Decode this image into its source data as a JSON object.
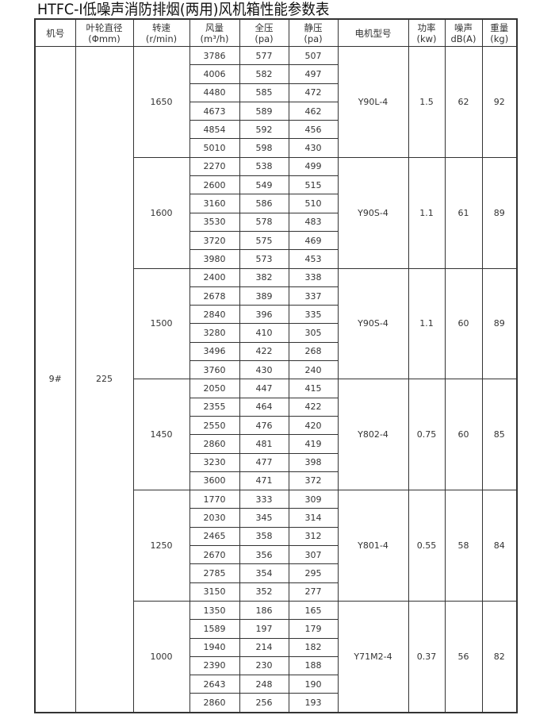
{
  "title": "HTFC-Ⅰ低噪声消防排烟(两用)风机箱性能参数表",
  "headers": [
    {
      "line1": "机号",
      "line2": ""
    },
    {
      "line1": "叶轮直径",
      "line2": "(Φmm)"
    },
    {
      "line1": "转速",
      "line2": "(r/min)"
    },
    {
      "line1": "风量",
      "line2": "(m³/h)"
    },
    {
      "line1": "全压",
      "line2": "(pa)"
    },
    {
      "line1": "静压",
      "line2": "(pa)"
    },
    {
      "line1": "电机型号",
      "line2": ""
    },
    {
      "line1": "功率",
      "line2": "(kw)"
    },
    {
      "line1": "噪声",
      "line2": "dB(A)"
    },
    {
      "line1": "重量",
      "line2": "(kg)"
    }
  ],
  "machine_no": "9#",
  "impeller_diameter": "225",
  "groups": [
    {
      "speed": "1650",
      "motor": "Y90L-4",
      "power": "1.5",
      "noise": "62",
      "weight": "92",
      "rows": [
        [
          "3786",
          "577",
          "507"
        ],
        [
          "4006",
          "582",
          "497"
        ],
        [
          "4480",
          "585",
          "472"
        ],
        [
          "4673",
          "589",
          "462"
        ],
        [
          "4854",
          "592",
          "456"
        ],
        [
          "5010",
          "598",
          "430"
        ]
      ]
    },
    {
      "speed": "1600",
      "motor": "Y90S-4",
      "power": "1.1",
      "noise": "61",
      "weight": "89",
      "rows": [
        [
          "2270",
          "538",
          "499"
        ],
        [
          "2600",
          "549",
          "515"
        ],
        [
          "3160",
          "586",
          "510"
        ],
        [
          "3530",
          "578",
          "483"
        ],
        [
          "3720",
          "575",
          "469"
        ],
        [
          "3980",
          "573",
          "453"
        ]
      ]
    },
    {
      "speed": "1500",
      "motor": "Y90S-4",
      "power": "1.1",
      "noise": "60",
      "weight": "89",
      "rows": [
        [
          "2400",
          "382",
          "338"
        ],
        [
          "2678",
          "389",
          "337"
        ],
        [
          "2840",
          "396",
          "335"
        ],
        [
          "3280",
          "410",
          "305"
        ],
        [
          "3496",
          "422",
          "268"
        ],
        [
          "3760",
          "430",
          "240"
        ]
      ]
    },
    {
      "speed": "1450",
      "motor": "Y802-4",
      "power": "0.75",
      "noise": "60",
      "weight": "85",
      "rows": [
        [
          "2050",
          "447",
          "415"
        ],
        [
          "2355",
          "464",
          "422"
        ],
        [
          "2550",
          "476",
          "420"
        ],
        [
          "2860",
          "481",
          "419"
        ],
        [
          "3230",
          "477",
          "398"
        ],
        [
          "3600",
          "471",
          "372"
        ]
      ]
    },
    {
      "speed": "1250",
      "motor": "Y801-4",
      "power": "0.55",
      "noise": "58",
      "weight": "84",
      "rows": [
        [
          "1770",
          "333",
          "309"
        ],
        [
          "2030",
          "345",
          "314"
        ],
        [
          "2465",
          "358",
          "312"
        ],
        [
          "2670",
          "356",
          "307"
        ],
        [
          "2785",
          "354",
          "295"
        ],
        [
          "3150",
          "352",
          "277"
        ]
      ]
    },
    {
      "speed": "1000",
      "motor": "Y71M2-4",
      "power": "0.37",
      "noise": "56",
      "weight": "82",
      "rows": [
        [
          "1350",
          "186",
          "165"
        ],
        [
          "1589",
          "197",
          "179"
        ],
        [
          "1940",
          "214",
          "182"
        ],
        [
          "2390",
          "230",
          "188"
        ],
        [
          "2643",
          "248",
          "190"
        ],
        [
          "2860",
          "256",
          "193"
        ]
      ]
    }
  ]
}
